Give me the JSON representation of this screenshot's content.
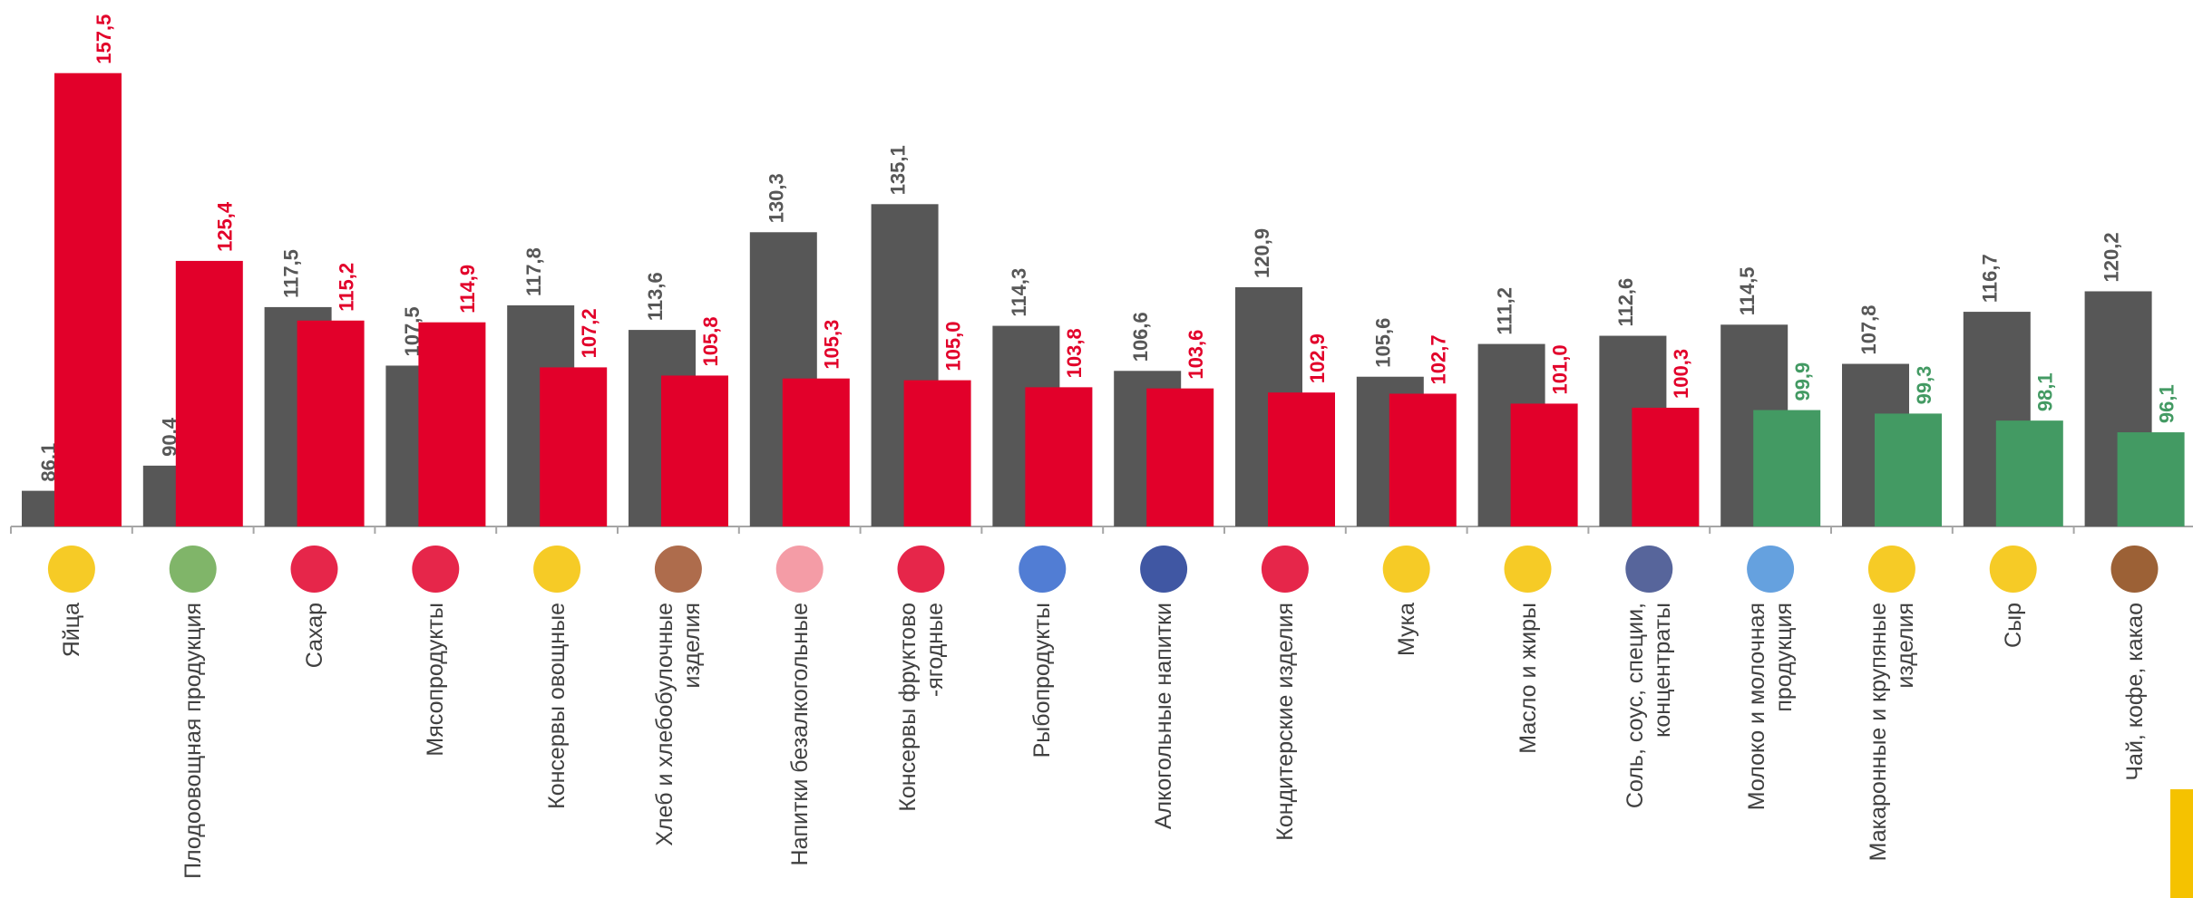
{
  "chart_data": {
    "type": "bar",
    "categories": [
      "Яйца",
      "Плодоовощная продукция",
      "Сахар",
      "Мясопродукты",
      "Консервы овощные",
      "Хлеб и хлебобулочные\nизделия",
      "Напитки безалкогольные",
      "Консервы фруктово\n-ягодные",
      "Рыбопродукты",
      "Алкогольные напитки",
      "Кондитерские изделия",
      "Мука",
      "Масло и жиры",
      "Соль, соус, специи,\nконцентраты",
      "Молоко и молочная\nпродукция",
      "Макаронные и крупяные\nизделия",
      "Сыр",
      "Чай, кофе, какао"
    ],
    "series": [
      {
        "color": "#575757",
        "values": [
          86.1,
          90.4,
          117.5,
          107.5,
          117.8,
          113.6,
          130.3,
          135.1,
          114.3,
          106.6,
          120.9,
          105.6,
          111.2,
          112.6,
          114.5,
          107.8,
          116.7,
          120.2
        ],
        "value_labels": [
          "86,1",
          "90,4",
          "117,5",
          "107,5",
          "117,8",
          "113,6",
          "130,3",
          "135,1",
          "114,3",
          "106,6",
          "120,9",
          "105,6",
          "111,2",
          "112,6",
          "114,5",
          "107,8",
          "116,7",
          "120,2"
        ]
      },
      {
        "colors": [
          "#e2002a",
          "#e2002a",
          "#e2002a",
          "#e2002a",
          "#e2002a",
          "#e2002a",
          "#e2002a",
          "#e2002a",
          "#e2002a",
          "#e2002a",
          "#e2002a",
          "#e2002a",
          "#e2002a",
          "#e2002a",
          "#439a63",
          "#439a63",
          "#439a63",
          "#439a63"
        ],
        "values": [
          157.5,
          125.4,
          115.2,
          114.9,
          107.2,
          105.8,
          105.3,
          105.0,
          103.8,
          103.6,
          102.9,
          102.7,
          101.0,
          100.3,
          99.9,
          99.3,
          98.1,
          96.1
        ],
        "value_labels": [
          "157,5",
          "125,4",
          "115,2",
          "114,9",
          "107,2",
          "105,8",
          "105,3",
          "105,0",
          "103,8",
          "103,6",
          "102,9",
          "102,7",
          "101,0",
          "100,3",
          "99,9",
          "99,3",
          "98,1",
          "96,1"
        ]
      }
    ],
    "ylim": [
      80,
      170
    ]
  }
}
